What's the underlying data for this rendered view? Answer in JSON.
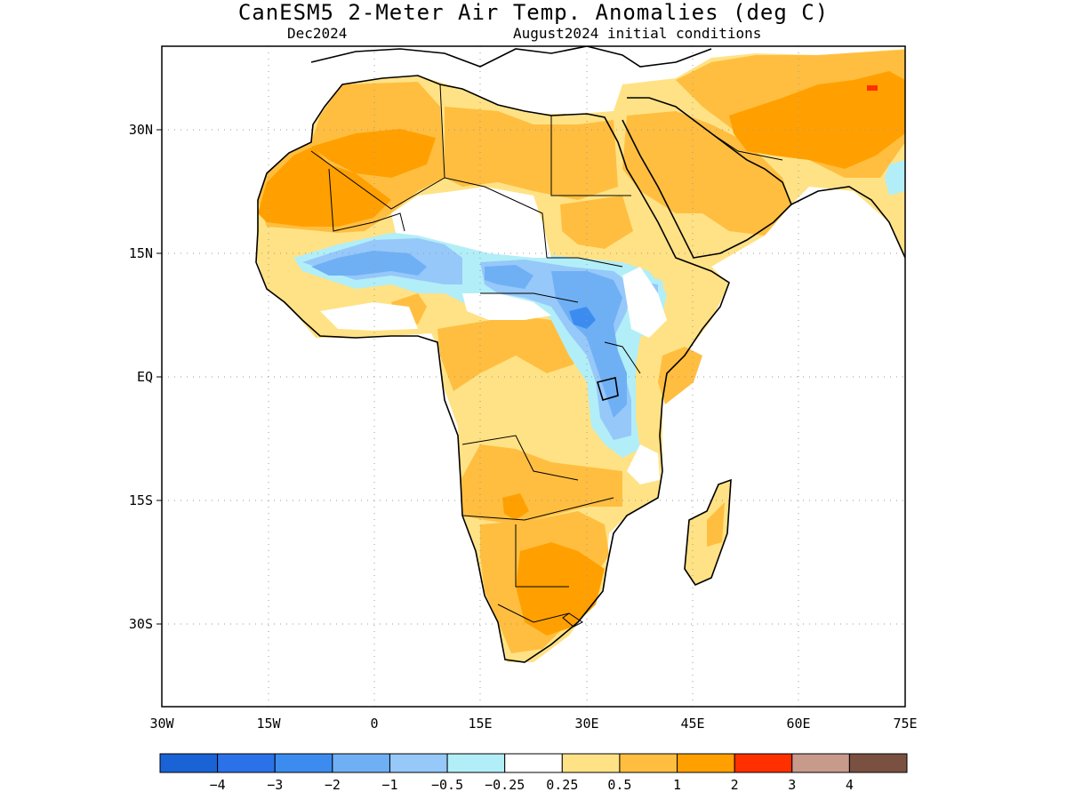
{
  "title": "CanESM5 2-Meter Air Temp. Anomalies (deg C)",
  "subtitle_left": "Dec2024",
  "subtitle_right": "August2024 initial conditions",
  "map": {
    "lat_ticks": [
      "30N",
      "15N",
      "EQ",
      "15S",
      "30S"
    ],
    "lon_ticks": [
      "30W",
      "15W",
      "0",
      "15E",
      "30E",
      "45E",
      "60E",
      "75E"
    ]
  },
  "legend": {
    "colors": [
      "#1a63d6",
      "#2b72e8",
      "#3c8cf0",
      "#6fb0f5",
      "#96c8fa",
      "#b2eef8",
      "#ffffff",
      "#ffe285",
      "#ffbe40",
      "#ffa000",
      "#ff3000",
      "#c89a8c",
      "#7a5040"
    ],
    "labels": [
      "-4",
      "-3",
      "-2",
      "-1",
      "-0.5",
      "-0.25",
      "0.25",
      "0.5",
      "1",
      "2",
      "3",
      "4"
    ]
  },
  "colors": {
    "warm_light": "#ffe285",
    "warm_mid": "#ffbe40",
    "warm_strong": "#ffa000",
    "cool_pale": "#b2eef8",
    "cool_light": "#96c8fa",
    "cool_mid": "#6fb0f5",
    "cool_strong": "#3c8cf0",
    "hot": "#ff3000"
  }
}
